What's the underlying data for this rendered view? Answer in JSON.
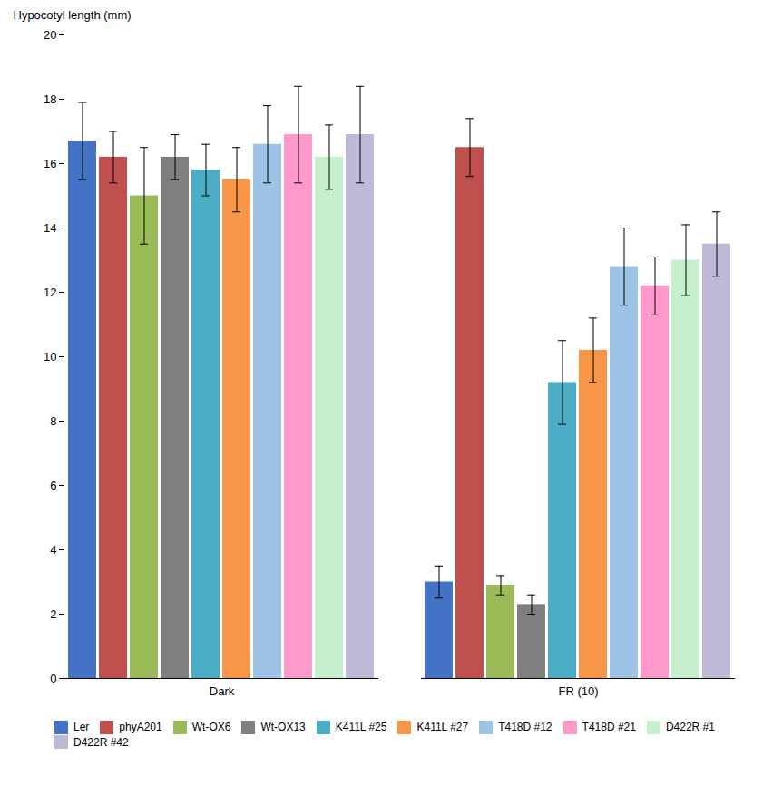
{
  "chart_data": {
    "type": "bar",
    "ylabel": "Hypocotyl length (mm)",
    "categories": [
      "Dark",
      "FR (10)"
    ],
    "ylim": [
      0,
      20
    ],
    "yticks": [
      0,
      2,
      4,
      6,
      8,
      10,
      12,
      14,
      16,
      18,
      20
    ],
    "grid": false,
    "legend": "bottom",
    "series": [
      {
        "name": "Ler",
        "color": "#4472C4",
        "values": [
          16.7,
          3.0
        ],
        "errors": [
          1.2,
          0.5
        ]
      },
      {
        "name": "phyA201",
        "color": "#C0504D",
        "values": [
          16.2,
          16.5
        ],
        "errors": [
          0.8,
          0.9
        ]
      },
      {
        "name": "Wt-OX6",
        "color": "#9BBB59",
        "values": [
          15.0,
          2.9
        ],
        "errors": [
          1.5,
          0.3
        ]
      },
      {
        "name": "Wt-OX13",
        "color": "#7F7F7F",
        "values": [
          16.2,
          2.3
        ],
        "errors": [
          0.7,
          0.3
        ]
      },
      {
        "name": "K411L #25",
        "color": "#4BACC6",
        "values": [
          15.8,
          9.2
        ],
        "errors": [
          0.8,
          1.3
        ]
      },
      {
        "name": "K411L #27",
        "color": "#F79646",
        "values": [
          15.5,
          10.2
        ],
        "errors": [
          1.0,
          1.0
        ]
      },
      {
        "name": "T418D #12",
        "color": "#9DC3E6",
        "values": [
          16.6,
          12.8
        ],
        "errors": [
          1.2,
          1.2
        ]
      },
      {
        "name": "T418D #21",
        "color": "#FF99CC",
        "values": [
          16.9,
          12.2
        ],
        "errors": [
          1.5,
          0.9
        ]
      },
      {
        "name": "D422R #1",
        "color": "#C6EFCE",
        "values": [
          16.2,
          13.0
        ],
        "errors": [
          1.0,
          1.1
        ]
      },
      {
        "name": "D422R #42",
        "color": "#BDB9D6",
        "values": [
          16.9,
          13.5
        ],
        "errors": [
          1.5,
          1.0
        ]
      }
    ]
  }
}
